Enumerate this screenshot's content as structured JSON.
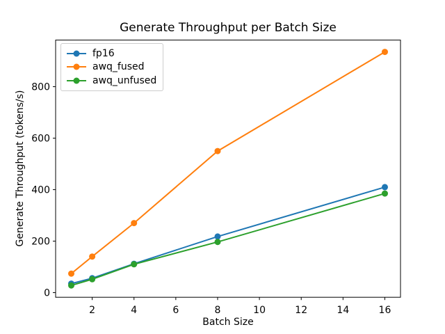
{
  "chart_data": {
    "type": "line",
    "title": "Generate Throughput per Batch Size",
    "xlabel": "Batch Size",
    "ylabel": "Generate Throughput (tokens/s)",
    "x": [
      1,
      2,
      4,
      8,
      16
    ],
    "series": [
      {
        "name": "fp16",
        "color": "#1f77b4",
        "values": [
          35,
          56,
          112,
          218,
          410
        ]
      },
      {
        "name": "awq_fused",
        "color": "#ff7f0e",
        "values": [
          74,
          140,
          270,
          550,
          935
        ]
      },
      {
        "name": "awq_unfused",
        "color": "#2ca02c",
        "values": [
          28,
          52,
          110,
          197,
          385
        ]
      }
    ],
    "xticks": [
      2,
      4,
      6,
      8,
      10,
      12,
      14,
      16
    ],
    "yticks": [
      0,
      200,
      400,
      600,
      800
    ],
    "xlim": [
      0.25,
      16.75
    ],
    "ylim": [
      -18,
      981
    ],
    "grid": false,
    "legend_position": "upper left",
    "marker": "o",
    "line_width": 2,
    "marker_radius": 4.5
  }
}
